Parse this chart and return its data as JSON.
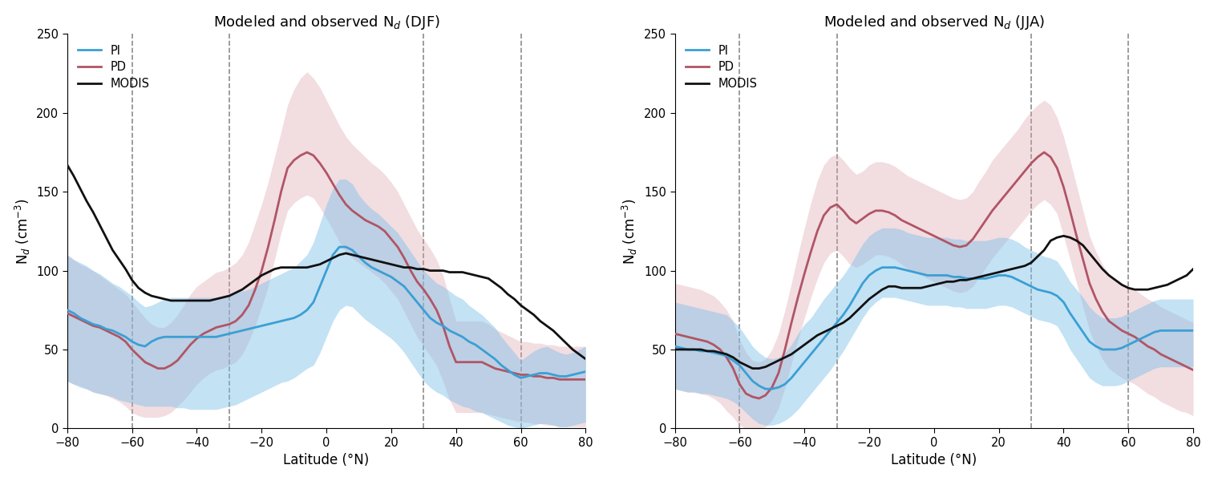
{
  "xlim": [
    -80,
    80
  ],
  "ylim": [
    0,
    250
  ],
  "dashed_lines": [
    -60,
    -30,
    30,
    60
  ],
  "xticks": [
    -80,
    -60,
    -40,
    -20,
    0,
    20,
    40,
    60,
    80
  ],
  "yticks": [
    0,
    50,
    100,
    150,
    200,
    250
  ],
  "pi_color": "#3b9fd4",
  "pd_color": "#b05565",
  "modis_color": "#111111",
  "pi_fill_alpha": 0.45,
  "pd_fill_alpha": 0.35,
  "pi_fill_color": "#7bbfe8",
  "pd_fill_color": "#dba0aa",
  "line_width": 2.0,
  "lat": [
    -80,
    -78,
    -76,
    -74,
    -72,
    -70,
    -68,
    -66,
    -64,
    -62,
    -60,
    -58,
    -56,
    -54,
    -52,
    -50,
    -48,
    -46,
    -44,
    -42,
    -40,
    -38,
    -36,
    -34,
    -32,
    -30,
    -28,
    -26,
    -24,
    -22,
    -20,
    -18,
    -16,
    -14,
    -12,
    -10,
    -8,
    -6,
    -4,
    -2,
    0,
    2,
    4,
    6,
    8,
    10,
    12,
    14,
    16,
    18,
    20,
    22,
    24,
    26,
    28,
    30,
    32,
    34,
    36,
    38,
    40,
    42,
    44,
    46,
    48,
    50,
    52,
    54,
    56,
    58,
    60,
    62,
    64,
    66,
    68,
    70,
    72,
    74,
    76,
    78,
    80
  ],
  "djf": {
    "pi_mean": [
      75,
      73,
      70,
      68,
      66,
      65,
      63,
      62,
      60,
      58,
      55,
      53,
      52,
      55,
      57,
      58,
      58,
      58,
      58,
      58,
      58,
      58,
      58,
      58,
      59,
      60,
      61,
      62,
      63,
      64,
      65,
      66,
      67,
      68,
      69,
      70,
      72,
      75,
      80,
      90,
      100,
      110,
      115,
      115,
      113,
      109,
      105,
      102,
      100,
      98,
      96,
      93,
      90,
      85,
      80,
      75,
      70,
      67,
      65,
      62,
      60,
      58,
      55,
      53,
      50,
      47,
      44,
      40,
      37,
      34,
      32,
      33,
      34,
      35,
      35,
      34,
      33,
      33,
      34,
      35,
      36
    ],
    "pi_low": [
      30,
      28,
      26,
      25,
      23,
      22,
      21,
      20,
      18,
      17,
      16,
      15,
      14,
      14,
      14,
      14,
      14,
      13,
      13,
      12,
      12,
      12,
      12,
      12,
      13,
      14,
      15,
      17,
      19,
      21,
      23,
      25,
      27,
      29,
      30,
      32,
      35,
      38,
      40,
      48,
      58,
      68,
      75,
      78,
      77,
      73,
      69,
      66,
      63,
      60,
      57,
      53,
      48,
      42,
      36,
      30,
      26,
      23,
      21,
      18,
      16,
      14,
      13,
      11,
      10,
      8,
      6,
      4,
      2,
      1,
      0,
      1,
      2,
      3,
      3,
      2,
      1,
      1,
      2,
      3,
      4
    ],
    "pi_high": [
      110,
      107,
      105,
      103,
      100,
      98,
      95,
      92,
      90,
      87,
      84,
      80,
      77,
      78,
      80,
      82,
      83,
      83,
      83,
      83,
      83,
      83,
      83,
      83,
      84,
      85,
      86,
      87,
      88,
      90,
      92,
      94,
      96,
      98,
      100,
      102,
      106,
      110,
      118,
      130,
      142,
      152,
      158,
      158,
      155,
      148,
      143,
      139,
      136,
      132,
      128,
      124,
      118,
      112,
      106,
      100,
      96,
      92,
      90,
      87,
      84,
      82,
      78,
      75,
      72,
      68,
      64,
      58,
      53,
      48,
      43,
      46,
      49,
      51,
      52,
      50,
      48,
      47,
      48,
      50,
      52
    ],
    "pd_mean": [
      73,
      71,
      69,
      67,
      65,
      64,
      62,
      60,
      58,
      55,
      50,
      46,
      42,
      40,
      38,
      38,
      40,
      43,
      48,
      53,
      57,
      60,
      62,
      64,
      65,
      66,
      68,
      72,
      78,
      88,
      100,
      115,
      132,
      150,
      165,
      170,
      173,
      175,
      173,
      168,
      162,
      155,
      148,
      142,
      138,
      135,
      132,
      130,
      128,
      125,
      120,
      115,
      108,
      100,
      93,
      88,
      82,
      75,
      65,
      52,
      42,
      42,
      42,
      42,
      42,
      40,
      38,
      37,
      36,
      35,
      34,
      34,
      33,
      33,
      32,
      32,
      31,
      31,
      31,
      31,
      31
    ],
    "pd_low": [
      30,
      28,
      27,
      25,
      23,
      22,
      21,
      19,
      17,
      14,
      10,
      8,
      7,
      7,
      7,
      8,
      10,
      14,
      18,
      23,
      28,
      32,
      35,
      37,
      38,
      40,
      42,
      47,
      55,
      65,
      77,
      90,
      107,
      124,
      138,
      143,
      146,
      148,
      146,
      140,
      133,
      126,
      118,
      112,
      108,
      105,
      102,
      99,
      96,
      92,
      87,
      82,
      74,
      66,
      58,
      52,
      46,
      40,
      30,
      18,
      10,
      10,
      10,
      10,
      10,
      9,
      8,
      7,
      6,
      5,
      4,
      4,
      3,
      3,
      2,
      2,
      1,
      1,
      1,
      1,
      1
    ],
    "pd_high": [
      110,
      107,
      104,
      102,
      100,
      97,
      94,
      91,
      88,
      85,
      80,
      75,
      70,
      66,
      64,
      64,
      67,
      72,
      78,
      85,
      90,
      93,
      96,
      99,
      100,
      102,
      105,
      110,
      118,
      130,
      142,
      156,
      172,
      188,
      205,
      215,
      222,
      226,
      222,
      216,
      208,
      200,
      192,
      185,
      180,
      176,
      172,
      168,
      165,
      161,
      156,
      150,
      142,
      134,
      126,
      120,
      114,
      107,
      97,
      82,
      68,
      68,
      68,
      68,
      68,
      66,
      63,
      61,
      59,
      57,
      55,
      55,
      54,
      54,
      53,
      53,
      52,
      52,
      52,
      52,
      52
    ],
    "modis": [
      167,
      160,
      152,
      144,
      137,
      129,
      121,
      113,
      107,
      101,
      94,
      89,
      86,
      84,
      83,
      82,
      81,
      81,
      81,
      81,
      81,
      81,
      81,
      82,
      83,
      84,
      86,
      88,
      91,
      94,
      97,
      99,
      101,
      102,
      102,
      102,
      102,
      102,
      103,
      104,
      106,
      108,
      110,
      111,
      110,
      109,
      108,
      107,
      106,
      105,
      104,
      103,
      102,
      102,
      101,
      101,
      100,
      100,
      100,
      99,
      99,
      99,
      98,
      97,
      96,
      95,
      92,
      89,
      85,
      82,
      78,
      75,
      72,
      68,
      65,
      62,
      58,
      54,
      50,
      47,
      44
    ]
  },
  "jja": {
    "pi_mean": [
      52,
      51,
      50,
      50,
      49,
      49,
      48,
      47,
      46,
      43,
      40,
      35,
      30,
      27,
      25,
      25,
      26,
      28,
      32,
      37,
      42,
      47,
      52,
      57,
      62,
      67,
      72,
      78,
      85,
      92,
      97,
      100,
      102,
      102,
      102,
      101,
      100,
      99,
      98,
      97,
      97,
      97,
      97,
      96,
      96,
      95,
      95,
      95,
      95,
      96,
      97,
      97,
      96,
      94,
      92,
      90,
      88,
      87,
      86,
      84,
      80,
      73,
      67,
      61,
      55,
      52,
      50,
      50,
      50,
      51,
      53,
      55,
      57,
      59,
      61,
      62,
      62,
      62,
      62,
      62,
      62
    ],
    "pi_low": [
      25,
      24,
      23,
      23,
      22,
      22,
      21,
      20,
      19,
      17,
      14,
      10,
      6,
      3,
      2,
      2,
      3,
      5,
      8,
      12,
      17,
      22,
      27,
      32,
      37,
      43,
      49,
      56,
      63,
      70,
      76,
      80,
      83,
      83,
      83,
      82,
      81,
      80,
      79,
      78,
      78,
      78,
      78,
      77,
      77,
      76,
      76,
      76,
      76,
      77,
      78,
      78,
      77,
      75,
      73,
      71,
      69,
      68,
      67,
      65,
      58,
      50,
      44,
      38,
      32,
      29,
      27,
      27,
      27,
      28,
      30,
      32,
      34,
      36,
      38,
      39,
      39,
      39,
      39,
      39,
      39
    ],
    "pi_high": [
      80,
      79,
      78,
      77,
      76,
      75,
      74,
      73,
      72,
      68,
      64,
      58,
      52,
      48,
      45,
      44,
      45,
      48,
      53,
      60,
      66,
      70,
      76,
      82,
      87,
      92,
      97,
      103,
      110,
      117,
      122,
      125,
      127,
      127,
      127,
      126,
      124,
      123,
      122,
      121,
      121,
      121,
      121,
      120,
      120,
      119,
      119,
      119,
      119,
      120,
      121,
      121,
      120,
      118,
      115,
      113,
      111,
      109,
      108,
      106,
      100,
      93,
      88,
      83,
      77,
      73,
      70,
      70,
      70,
      71,
      73,
      75,
      77,
      79,
      81,
      82,
      82,
      82,
      82,
      82,
      82
    ],
    "pd_mean": [
      60,
      59,
      58,
      57,
      56,
      55,
      53,
      50,
      45,
      38,
      28,
      22,
      20,
      19,
      21,
      26,
      35,
      50,
      67,
      83,
      98,
      112,
      125,
      135,
      140,
      142,
      138,
      133,
      130,
      133,
      136,
      138,
      138,
      137,
      135,
      132,
      130,
      128,
      126,
      124,
      122,
      120,
      118,
      116,
      115,
      116,
      120,
      126,
      132,
      138,
      143,
      148,
      153,
      158,
      163,
      168,
      172,
      175,
      172,
      165,
      153,
      138,
      122,
      107,
      92,
      82,
      74,
      68,
      65,
      62,
      60,
      58,
      55,
      52,
      50,
      47,
      45,
      43,
      41,
      39,
      37
    ],
    "pd_low": [
      25,
      24,
      23,
      23,
      22,
      21,
      19,
      16,
      11,
      7,
      2,
      0,
      0,
      0,
      1,
      5,
      13,
      26,
      41,
      56,
      70,
      83,
      95,
      105,
      111,
      113,
      109,
      104,
      102,
      104,
      107,
      110,
      110,
      109,
      107,
      104,
      101,
      99,
      97,
      95,
      93,
      91,
      89,
      87,
      86,
      87,
      90,
      96,
      102,
      108,
      113,
      118,
      123,
      128,
      133,
      138,
      142,
      145,
      142,
      136,
      122,
      107,
      92,
      77,
      62,
      52,
      44,
      38,
      35,
      32,
      30,
      28,
      25,
      22,
      20,
      17,
      15,
      13,
      11,
      10,
      8
    ],
    "pd_high": [
      92,
      91,
      90,
      89,
      88,
      86,
      84,
      80,
      75,
      68,
      56,
      48,
      43,
      42,
      44,
      50,
      60,
      75,
      92,
      110,
      127,
      143,
      157,
      167,
      172,
      174,
      170,
      165,
      161,
      163,
      167,
      169,
      169,
      168,
      166,
      163,
      160,
      158,
      156,
      154,
      152,
      150,
      148,
      146,
      145,
      146,
      150,
      157,
      163,
      170,
      175,
      180,
      185,
      190,
      196,
      201,
      205,
      208,
      205,
      197,
      185,
      170,
      154,
      138,
      122,
      112,
      104,
      98,
      95,
      92,
      90,
      88,
      85,
      82,
      80,
      77,
      75,
      73,
      71,
      69,
      67
    ],
    "modis": [
      50,
      50,
      50,
      50,
      50,
      49,
      49,
      48,
      47,
      45,
      42,
      40,
      38,
      38,
      39,
      41,
      43,
      45,
      47,
      50,
      53,
      56,
      59,
      61,
      63,
      65,
      67,
      70,
      74,
      78,
      82,
      85,
      88,
      90,
      90,
      89,
      89,
      89,
      89,
      90,
      91,
      92,
      93,
      93,
      94,
      94,
      95,
      96,
      97,
      98,
      99,
      100,
      101,
      102,
      103,
      105,
      109,
      113,
      119,
      121,
      122,
      121,
      119,
      116,
      111,
      106,
      101,
      97,
      94,
      91,
      89,
      88,
      88,
      88,
      89,
      90,
      91,
      93,
      95,
      97,
      101
    ]
  }
}
